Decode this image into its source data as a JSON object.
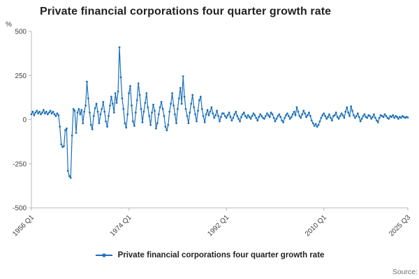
{
  "title": "Private financial corporations four quarter growth rate",
  "y_axis_unit": "%",
  "legend": {
    "label": "Private financial corporations four quarter growth rate"
  },
  "source_text": "Source:",
  "colors": {
    "line": "#1d70b8",
    "axis": "#b9b9b9",
    "tick_text": "#414042",
    "title_text": "#222222",
    "source_text": "#707071"
  },
  "chart_data": {
    "type": "line",
    "title": "Private financial corporations four quarter growth rate",
    "xlabel": "",
    "ylabel": "%",
    "x_start": "1956 Q1",
    "x_end": "2025 Q3",
    "x_frequency": "quarterly",
    "ylim": [
      -500,
      500
    ],
    "yticks": [
      500,
      250,
      0,
      -250,
      -500
    ],
    "xticks": [
      {
        "label": "1956 Q1",
        "index": 0
      },
      {
        "label": "1974 Q1",
        "index": 72
      },
      {
        "label": "1992 Q1",
        "index": 144
      },
      {
        "label": "2010 Q1",
        "index": 216
      },
      {
        "label": "2025 Q3",
        "index": 278
      }
    ],
    "grid": false,
    "marker": "circle",
    "legend_position": "bottom",
    "series_name": "Private financial corporations four quarter growth rate",
    "values": [
      30,
      45,
      25,
      40,
      50,
      35,
      45,
      30,
      40,
      55,
      35,
      45,
      30,
      40,
      50,
      35,
      45,
      30,
      20,
      35,
      25,
      -40,
      -140,
      -155,
      -150,
      -60,
      -50,
      -290,
      -320,
      -330,
      -90,
      60,
      50,
      -75,
      40,
      60,
      30,
      55,
      -20,
      45,
      80,
      215,
      120,
      40,
      -30,
      -55,
      20,
      65,
      90,
      45,
      -20,
      30,
      60,
      100,
      45,
      -10,
      -40,
      20,
      80,
      130,
      90,
      40,
      150,
      95,
      160,
      410,
      240,
      120,
      60,
      -20,
      -45,
      30,
      150,
      190,
      80,
      -10,
      -35,
      40,
      110,
      205,
      140,
      60,
      -15,
      45,
      95,
      150,
      70,
      20,
      -30,
      40,
      85,
      50,
      -50,
      -20,
      30,
      70,
      100,
      60,
      20,
      -40,
      -60,
      -30,
      45,
      90,
      150,
      80,
      30,
      -20,
      60,
      120,
      180,
      90,
      245,
      130,
      60,
      20,
      -20,
      40,
      90,
      140,
      70,
      30,
      -10,
      50,
      110,
      130,
      60,
      20,
      -15,
      30,
      55,
      25,
      45,
      70,
      35,
      10,
      25,
      50,
      20,
      -10,
      15,
      35,
      35,
      20,
      10,
      25,
      40,
      15,
      -5,
      10,
      30,
      45,
      20,
      5,
      -10,
      15,
      30,
      40,
      20,
      10,
      25,
      15,
      5,
      20,
      35,
      25,
      10,
      -5,
      15,
      30,
      20,
      10,
      5,
      20,
      35,
      25,
      15,
      40,
      30,
      10,
      -10,
      5,
      20,
      30,
      15,
      -5,
      -15,
      10,
      25,
      35,
      20,
      5,
      15,
      30,
      45,
      25,
      70,
      45,
      20,
      10,
      30,
      50,
      35,
      15,
      25,
      40,
      20,
      -5,
      -20,
      -35,
      -25,
      -40,
      -30,
      -10,
      10,
      25,
      35,
      20,
      5,
      15,
      30,
      10,
      -5,
      20,
      25,
      40,
      15,
      5,
      20,
      35,
      25,
      10,
      45,
      70,
      40,
      20,
      75,
      50,
      25,
      10,
      20,
      35,
      15,
      -10,
      5,
      20,
      30,
      15,
      10,
      25,
      20,
      5,
      15,
      30,
      10,
      -5,
      -15,
      10,
      25,
      20,
      15,
      30,
      20,
      10,
      5,
      20,
      15,
      25,
      10,
      20,
      15,
      5,
      15,
      10,
      20,
      15,
      10,
      15,
      12
    ]
  }
}
